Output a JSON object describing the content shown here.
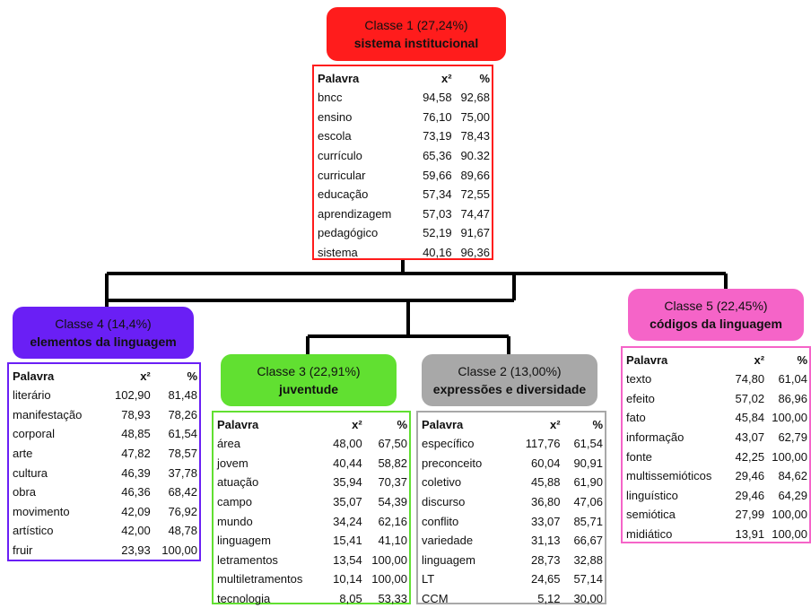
{
  "columns": {
    "word": "Palavra",
    "chi": "x²",
    "pct": "%"
  },
  "colors": {
    "class1": "#ff1c1c",
    "class4": "#6a1ff5",
    "class3": "#61e031",
    "class2": "#a8a8a8",
    "class5": "#f564c8",
    "connector": "#000000"
  },
  "classes": {
    "c1": {
      "name": "Classe 1 (27,24%)",
      "theme": "sistema institucional",
      "rows": [
        {
          "w": "bncc",
          "x": "94,58",
          "p": "92,68"
        },
        {
          "w": "ensino",
          "x": "76,10",
          "p": "75,00"
        },
        {
          "w": "escola",
          "x": "73,19",
          "p": "78,43"
        },
        {
          "w": "currículo",
          "x": "65,36",
          "p": "90.32"
        },
        {
          "w": "curricular",
          "x": "59,66",
          "p": "89,66"
        },
        {
          "w": "educação",
          "x": "57,34",
          "p": "72,55"
        },
        {
          "w": "aprendizagem",
          "x": "57,03",
          "p": "74,47"
        },
        {
          "w": "pedagógico",
          "x": "52,19",
          "p": "91,67"
        },
        {
          "w": "sistema",
          "x": "40,16",
          "p": "96,36"
        }
      ]
    },
    "c4": {
      "name": "Classe 4 (14,4%)",
      "theme": "elementos da linguagem",
      "rows": [
        {
          "w": "literário",
          "x": "102,90",
          "p": "81,48"
        },
        {
          "w": "manifestação",
          "x": "78,93",
          "p": "78,26"
        },
        {
          "w": "corporal",
          "x": "48,85",
          "p": "61,54"
        },
        {
          "w": "arte",
          "x": "47,82",
          "p": "78,57"
        },
        {
          "w": "cultura",
          "x": "46,39",
          "p": "37,78"
        },
        {
          "w": "obra",
          "x": "46,36",
          "p": "68,42"
        },
        {
          "w": "movimento",
          "x": "42,09",
          "p": "76,92"
        },
        {
          "w": "artístico",
          "x": "42,00",
          "p": "48,78"
        },
        {
          "w": "fruir",
          "x": "23,93",
          "p": "100,00"
        }
      ]
    },
    "c3": {
      "name": "Classe 3 (22,91%)",
      "theme": "juventude",
      "rows": [
        {
          "w": "área",
          "x": "48,00",
          "p": "67,50"
        },
        {
          "w": "jovem",
          "x": "40,44",
          "p": "58,82"
        },
        {
          "w": "atuação",
          "x": "35,94",
          "p": "70,37"
        },
        {
          "w": "campo",
          "x": "35,07",
          "p": "54,39"
        },
        {
          "w": "mundo",
          "x": "34,24",
          "p": "62,16"
        },
        {
          "w": "linguagem",
          "x": "15,41",
          "p": "41,10"
        },
        {
          "w": "letramentos",
          "x": "13,54",
          "p": "100,00"
        },
        {
          "w": "multiletramentos",
          "x": "10,14",
          "p": "100,00"
        },
        {
          "w": "tecnologia",
          "x": "8,05",
          "p": "53,33"
        }
      ]
    },
    "c2": {
      "name": "Classe 2 (13,00%)",
      "theme": "expressões e diversidade",
      "rows": [
        {
          "w": "específico",
          "x": "117,76",
          "p": "61,54"
        },
        {
          "w": "preconceito",
          "x": "60,04",
          "p": "90,91"
        },
        {
          "w": "coletivo",
          "x": "45,88",
          "p": "61,90"
        },
        {
          "w": "discurso",
          "x": "36,80",
          "p": "47,06"
        },
        {
          "w": "conflito",
          "x": "33,07",
          "p": "85,71"
        },
        {
          "w": "variedade",
          "x": "31,13",
          "p": "66,67"
        },
        {
          "w": "linguagem",
          "x": "28,73",
          "p": "32,88"
        },
        {
          "w": "LT",
          "x": "24,65",
          "p": "57,14"
        },
        {
          "w": "CCM",
          "x": "5,12",
          "p": "30,00"
        }
      ]
    },
    "c5": {
      "name": "Classe 5 (22,45%)",
      "theme": "códigos da linguagem",
      "rows": [
        {
          "w": "texto",
          "x": "74,80",
          "p": "61,04"
        },
        {
          "w": "efeito",
          "x": "57,02",
          "p": "86,96"
        },
        {
          "w": "fato",
          "x": "45,84",
          "p": "100,00"
        },
        {
          "w": "informação",
          "x": "43,07",
          "p": "62,79"
        },
        {
          "w": "fonte",
          "x": "42,25",
          "p": "100,00"
        },
        {
          "w": "multissemióticos",
          "x": "29,46",
          "p": "84,62"
        },
        {
          "w": "linguístico",
          "x": "29,46",
          "p": "64,29"
        },
        {
          "w": "semiótica",
          "x": "27,99",
          "p": "100,00"
        },
        {
          "w": "midiático",
          "x": "13,91",
          "p": "100,00"
        }
      ]
    }
  }
}
